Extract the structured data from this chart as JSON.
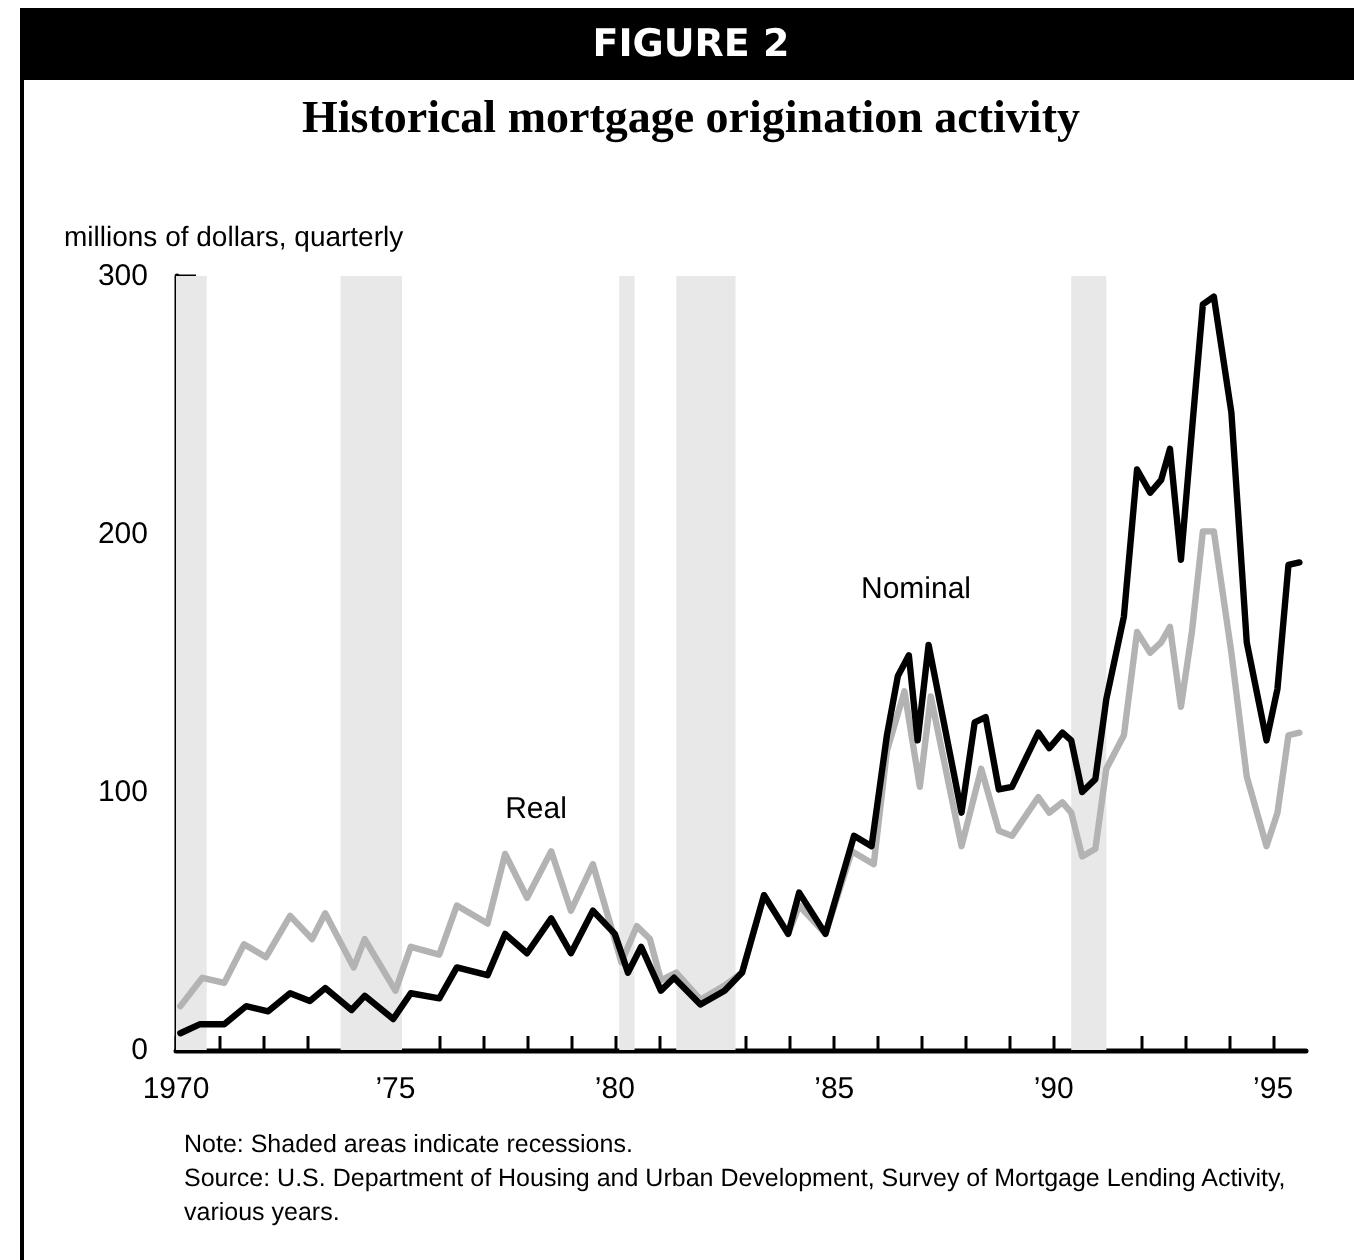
{
  "chart_data": {
    "type": "line",
    "title": "Historical mortgage origination activity",
    "ylabel": "millions of dollars, quarterly",
    "annotations": [
      "FIGURE 2",
      "Note: Shaded areas indicate recessions.",
      "Source: U.S. Department of Housing and Urban Development, Survey of Mortgage Lending Activity, various years."
    ],
    "series": [
      {
        "name": "Nominal",
        "color": "#000000",
        "x": [
          1970.1,
          1970.55,
          1971.1,
          1971.6,
          1972.1,
          1972.6,
          1973.05,
          1973.4,
          1974.0,
          1974.3,
          1974.95,
          1975.35,
          1976.0,
          1976.4,
          1977.1,
          1977.5,
          1978.0,
          1978.55,
          1979.0,
          1979.5,
          1980.0,
          1980.3,
          1980.6,
          1981.05,
          1981.35,
          1981.95,
          1982.5,
          1982.9,
          1983.4,
          1983.95,
          1984.2,
          1984.8,
          1985.45,
          1985.85,
          1986.2,
          1986.45,
          1986.7,
          1986.9,
          1987.15,
          1987.9,
          1988.2,
          1988.45,
          1988.75,
          1989.05,
          1989.65,
          1989.9,
          1990.2,
          1990.4,
          1990.65,
          1990.95,
          1991.2,
          1991.6,
          1991.9,
          1992.2,
          1992.45,
          1992.65,
          1992.9,
          1993.15,
          1993.4,
          1993.65,
          1994.05,
          1994.4,
          1994.85,
          1995.1,
          1995.35,
          1995.6
        ],
        "values": [
          6.5,
          10,
          10,
          17,
          15,
          22,
          19,
          24,
          15.5,
          21,
          12,
          22,
          20,
          32,
          29,
          45,
          37.5,
          51,
          37.5,
          54,
          45,
          30,
          40,
          23,
          28,
          17.6,
          23,
          30,
          60,
          45,
          61,
          45,
          83,
          79,
          122,
          145,
          153,
          120,
          157,
          92,
          127,
          129,
          101,
          102,
          123,
          117,
          123,
          120,
          100,
          105,
          136,
          168,
          225,
          216,
          221,
          233,
          190,
          240,
          289,
          292,
          247,
          158,
          120,
          140,
          188,
          189
        ]
      },
      {
        "name": "Real",
        "color": "#b3b3b3",
        "x": [
          1970.1,
          1970.6,
          1971.1,
          1971.55,
          1972.05,
          1972.6,
          1973.1,
          1973.4,
          1974.05,
          1974.3,
          1975.0,
          1975.35,
          1976.0,
          1976.4,
          1977.1,
          1977.5,
          1978.0,
          1978.55,
          1979.0,
          1979.5,
          1980.15,
          1980.5,
          1980.8,
          1981.05,
          1981.4,
          1981.95,
          1982.5,
          1982.9,
          1983.4,
          1983.95,
          1984.2,
          1984.8,
          1985.4,
          1985.9,
          1986.2,
          1986.6,
          1986.95,
          1987.2,
          1987.9,
          1988.35,
          1988.75,
          1989.05,
          1989.65,
          1989.9,
          1990.2,
          1990.4,
          1990.65,
          1990.95,
          1991.2,
          1991.6,
          1991.9,
          1992.2,
          1992.45,
          1992.65,
          1992.9,
          1993.15,
          1993.4,
          1993.65,
          1994.05,
          1994.4,
          1994.85,
          1995.1,
          1995.35,
          1995.6
        ],
        "values": [
          17,
          28,
          26,
          41,
          36,
          52,
          43,
          53,
          32,
          43,
          23,
          40,
          37,
          56,
          49,
          76,
          59,
          77,
          54,
          72,
          34,
          48,
          43,
          27,
          30,
          19.5,
          25,
          30,
          60,
          45,
          56,
          45,
          77,
          72,
          116,
          139,
          102,
          137,
          79,
          109,
          85,
          83,
          98,
          92,
          96,
          92,
          75,
          78,
          109,
          122,
          162,
          154,
          158,
          164,
          133,
          162,
          201,
          201,
          154,
          106,
          79,
          92,
          122,
          123
        ]
      }
    ],
    "xlim": [
      1970,
      1995.75
    ],
    "xticks": [
      {
        "value": 1970,
        "label": "1970"
      },
      {
        "value": 1971,
        "label": null
      },
      {
        "value": 1972,
        "label": null
      },
      {
        "value": 1973,
        "label": null
      },
      {
        "value": 1974,
        "label": null
      },
      {
        "value": 1975,
        "label": "’75"
      },
      {
        "value": 1976,
        "label": null
      },
      {
        "value": 1977,
        "label": null
      },
      {
        "value": 1978,
        "label": null
      },
      {
        "value": 1979,
        "label": null
      },
      {
        "value": 1980,
        "label": "’80"
      },
      {
        "value": 1981,
        "label": null
      },
      {
        "value": 1982,
        "label": null
      },
      {
        "value": 1983,
        "label": null
      },
      {
        "value": 1984,
        "label": null
      },
      {
        "value": 1985,
        "label": "’85"
      },
      {
        "value": 1986,
        "label": null
      },
      {
        "value": 1987,
        "label": null
      },
      {
        "value": 1988,
        "label": null
      },
      {
        "value": 1989,
        "label": null
      },
      {
        "value": 1990,
        "label": "’90"
      },
      {
        "value": 1991,
        "label": null
      },
      {
        "value": 1992,
        "label": null
      },
      {
        "value": 1993,
        "label": null
      },
      {
        "value": 1994,
        "label": null
      },
      {
        "value": 1995,
        "label": "’95"
      }
    ],
    "ylim": [
      0,
      300
    ],
    "yticks": [
      0,
      100,
      200,
      300
    ],
    "bands": [
      {
        "axis": "x",
        "from": 1970,
        "to": 1970.7,
        "color": "#e8e8e8"
      },
      {
        "axis": "x",
        "from": 1973.75,
        "to": 1975.15,
        "color": "#e8e8e8"
      },
      {
        "axis": "x",
        "from": 1980.1,
        "to": 1980.45,
        "color": "#e8e8e8"
      },
      {
        "axis": "x",
        "from": 1981.4,
        "to": 1982.75,
        "color": "#e8e8e8"
      },
      {
        "axis": "x",
        "from": 1990.4,
        "to": 1991.2,
        "color": "#e8e8e8"
      }
    ],
    "grid": false,
    "marker": "none",
    "line_style": "solid"
  }
}
